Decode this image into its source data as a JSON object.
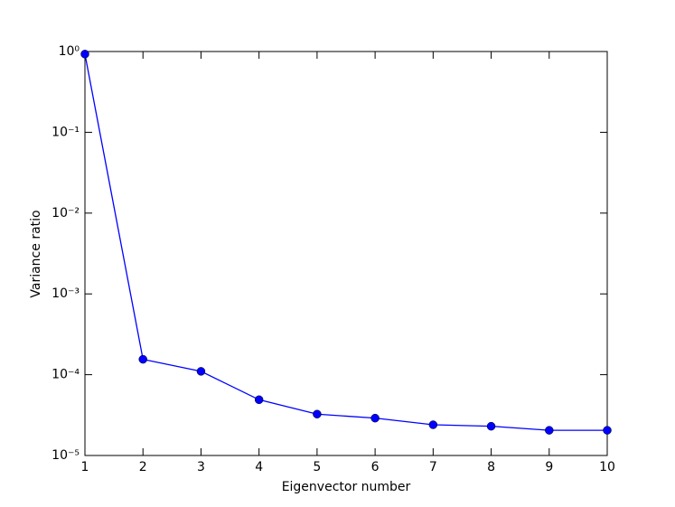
{
  "chart_data": {
    "type": "line",
    "x_label": "Eigenvector number",
    "y_label": "Variance ratio",
    "x": [
      1,
      2,
      3,
      4,
      5,
      6,
      7,
      8,
      9,
      10
    ],
    "series": [
      {
        "name": "Variance ratio",
        "color": "#0000ff",
        "values": [
          0.93,
          0.000155,
          0.00011,
          4.9e-05,
          3.25e-05,
          2.9e-05,
          2.4e-05,
          2.3e-05,
          2.05e-05,
          2.05e-05
        ]
      }
    ],
    "xlim": [
      1,
      10
    ],
    "xticks": [
      1,
      2,
      3,
      4,
      5,
      6,
      7,
      8,
      9,
      10
    ],
    "ylim": [
      1e-05,
      1
    ],
    "y_log_scale": true,
    "yticks": [
      {
        "value": 1e-05,
        "label": "10⁻⁵"
      },
      {
        "value": 0.0001,
        "label": "10⁻⁴"
      },
      {
        "value": 0.001,
        "label": "10⁻³"
      },
      {
        "value": 0.01,
        "label": "10⁻²"
      },
      {
        "value": 0.1,
        "label": "10⁻¹"
      },
      {
        "value": 1,
        "label": "10⁰"
      }
    ],
    "grid": false
  }
}
